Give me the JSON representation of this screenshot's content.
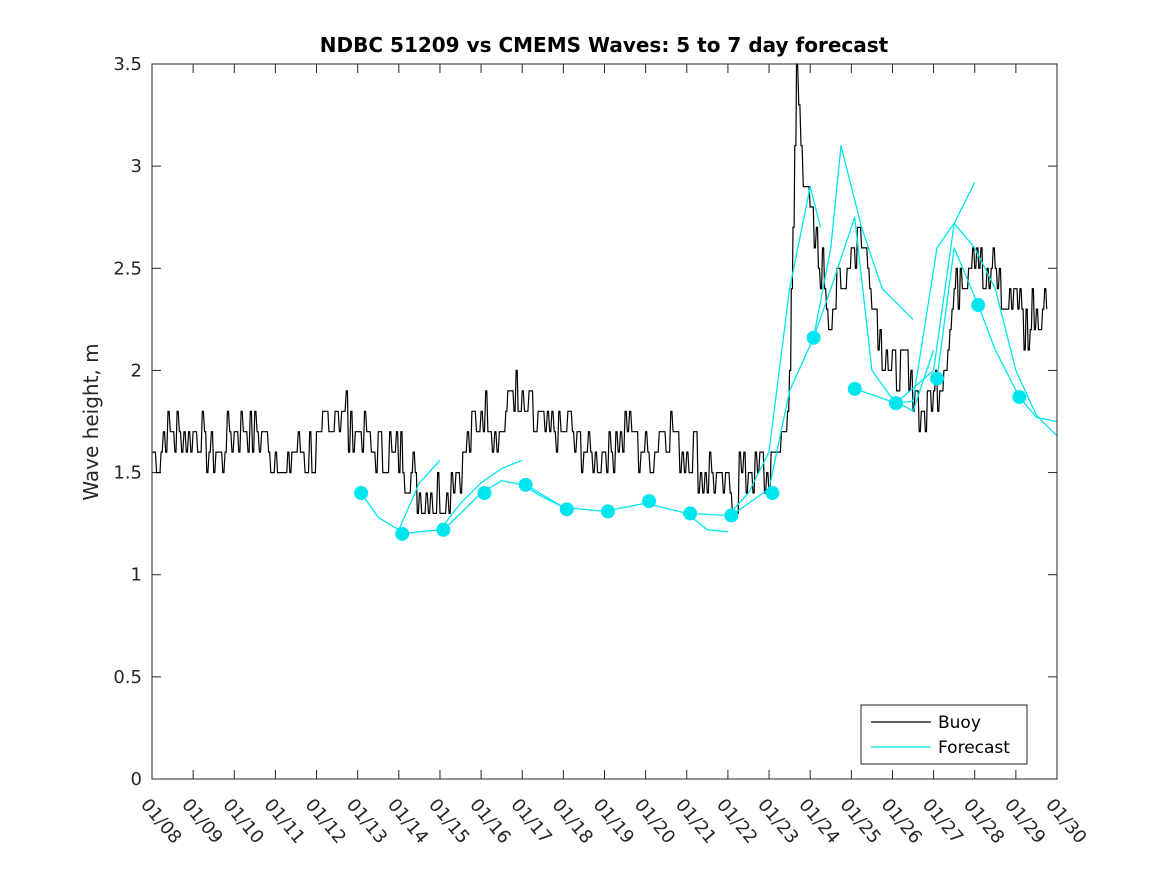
{
  "chart_data": {
    "type": "line",
    "title": "NDBC 51209 vs CMEMS Waves: 5 to 7 day forecast",
    "xlabel": "",
    "ylabel": "Wave height, m",
    "xlim": [
      "01/08",
      "01/30"
    ],
    "ylim": [
      0,
      3.5
    ],
    "x_tick_labels": [
      "01/08",
      "01/09",
      "01/10",
      "01/11",
      "01/12",
      "01/13",
      "01/14",
      "01/15",
      "01/16",
      "01/17",
      "01/18",
      "01/19",
      "01/20",
      "01/21",
      "01/22",
      "01/23",
      "01/24",
      "01/25",
      "01/26",
      "01/27",
      "01/28",
      "01/29",
      "01/30"
    ],
    "y_ticks": [
      0,
      0.5,
      1,
      1.5,
      2,
      2.5,
      3,
      3.5
    ],
    "y_tick_labels": [
      "0",
      "0.5",
      "1",
      "1.5",
      "2",
      "2.5",
      "3",
      "3.5"
    ],
    "legend": {
      "placement": "bottom-right",
      "entries": [
        "Buoy",
        "Forecast"
      ]
    },
    "grid": false,
    "colors": {
      "buoy": "#000000",
      "forecast": "#00e5ee"
    },
    "series": [
      {
        "name": "Buoy",
        "x": [
          "01/08 00:00",
          "01/08 12:00",
          "01/09 00:00",
          "01/09 12:00",
          "01/10 00:00",
          "01/10 12:00",
          "01/11 00:00",
          "01/11 06:00",
          "01/11 12:00",
          "01/12 00:00",
          "01/12 06:00",
          "01/12 12:00",
          "01/13 00:00",
          "01/13 12:00",
          "01/14 00:00",
          "01/14 06:00",
          "01/14 12:00",
          "01/15 00:00",
          "01/15 12:00",
          "01/15 20:00",
          "01/16 00:00",
          "01/16 12:00",
          "01/16 18:00",
          "01/17 00:00",
          "01/17 12:00",
          "01/18 00:00",
          "01/18 12:00",
          "01/19 00:00",
          "01/19 12:00",
          "01/20 00:00",
          "01/20 12:00",
          "01/21 00:00",
          "01/21 12:00",
          "01/22 00:00",
          "01/22 12:00",
          "01/23 00:00",
          "01/23 06:00",
          "01/23 12:00",
          "01/23 14:00",
          "01/23 16:00",
          "01/23 20:00",
          "01/24 00:00",
          "01/24 06:00",
          "01/24 12:00",
          "01/24 18:00",
          "01/25 00:00",
          "01/25 06:00",
          "01/25 12:00",
          "01/25 18:00",
          "01/26 00:00",
          "01/26 06:00",
          "01/26 12:00",
          "01/26 18:00",
          "01/27 00:00",
          "01/27 06:00",
          "01/27 12:00",
          "01/27 18:00",
          "01/28 00:00",
          "01/28 06:00",
          "01/28 12:00",
          "01/28 18:00",
          "01/29 00:00",
          "01/29 06:00",
          "01/29 12:00",
          "01/29 18:00"
        ],
        "y": [
          1.6,
          1.7,
          1.7,
          1.6,
          1.7,
          1.7,
          1.6,
          1.5,
          1.6,
          1.6,
          1.7,
          1.8,
          1.7,
          1.6,
          1.6,
          1.5,
          1.4,
          1.4,
          1.5,
          1.7,
          1.8,
          1.7,
          1.9,
          1.8,
          1.7,
          1.7,
          1.6,
          1.6,
          1.7,
          1.6,
          1.7,
          1.6,
          1.5,
          1.4,
          1.5,
          1.5,
          1.6,
          1.9,
          2.7,
          3.5,
          3.0,
          2.7,
          2.5,
          2.3,
          2.4,
          2.6,
          2.7,
          2.4,
          2.1,
          2.0,
          2.0,
          1.9,
          1.8,
          1.9,
          2.0,
          2.4,
          2.5,
          2.6,
          2.4,
          2.5,
          2.3,
          2.4,
          2.2,
          2.3,
          2.3
        ]
      },
      {
        "name": "Forecast",
        "x": [
          "01/13 02:00",
          "01/13 12:00",
          "01/14 02:00",
          "01/14 12:00",
          "01/15 02:00",
          "01/15 12:00",
          "01/16 02:00",
          "01/16 12:00",
          "01/17 02:00",
          "01/17 12:00",
          "01/18 02:00",
          "01/18 12:00",
          "01/19 02:00",
          "01/19 12:00",
          "01/20 02:00",
          "01/20 12:00",
          "01/21 02:00",
          "01/21 12:00",
          "01/22 02:00",
          "01/22 12:00",
          "01/23 02:00",
          "01/23 12:00",
          "01/24 02:00",
          "01/24 12:00",
          "01/25 02:00",
          "01/25 12:00",
          "01/26 02:00",
          "01/26 12:00",
          "01/27 02:00",
          "01/27 12:00",
          "01/28 02:00",
          "01/28 12:00",
          "01/29 02:00",
          "01/29 12:00",
          "01/30 00:00"
        ],
        "y": [
          1.4,
          1.25,
          1.2,
          1.21,
          1.22,
          1.3,
          1.4,
          1.45,
          1.44,
          1.38,
          1.32,
          1.32,
          1.31,
          1.34,
          1.36,
          1.34,
          1.3,
          1.27,
          1.29,
          1.35,
          1.4,
          1.75,
          2.16,
          2.4,
          1.91,
          1.88,
          1.84,
          1.95,
          1.96,
          2.5,
          2.32,
          2.05,
          1.87,
          1.78,
          1.68
        ]
      }
    ],
    "forecast_markers": {
      "x": [
        "01/13 02:00",
        "01/14 02:00",
        "01/15 02:00",
        "01/16 02:00",
        "01/17 02:00",
        "01/18 02:00",
        "01/19 02:00",
        "01/20 02:00",
        "01/21 02:00",
        "01/22 02:00",
        "01/23 02:00",
        "01/24 02:00",
        "01/25 02:00",
        "01/26 02:00",
        "01/27 02:00",
        "01/28 02:00",
        "01/29 02:00"
      ],
      "y": [
        1.4,
        1.2,
        1.22,
        1.4,
        1.44,
        1.32,
        1.31,
        1.36,
        1.3,
        1.29,
        1.4,
        2.16,
        1.91,
        1.84,
        1.96,
        2.32,
        1.87
      ]
    },
    "forecast_segments": [
      {
        "x": [
          "01/13 02:00",
          "01/13 12:00",
          "01/14 00:00",
          "01/14 12:00",
          "01/15 00:00"
        ],
        "y": [
          1.4,
          1.28,
          1.22,
          1.45,
          1.56
        ]
      },
      {
        "x": [
          "01/14 02:00",
          "01/14 12:00",
          "01/15 00:00",
          "01/15 12:00",
          "01/16 00:00",
          "01/16 12:00",
          "01/17 00:00"
        ],
        "y": [
          1.2,
          1.21,
          1.22,
          1.35,
          1.45,
          1.52,
          1.56
        ]
      },
      {
        "x": [
          "01/15 02:00",
          "01/15 12:00",
          "01/16 00:00",
          "01/16 12:00",
          "01/17 00:00",
          "01/17 12:00",
          "01/18 00:00"
        ],
        "y": [
          1.22,
          1.3,
          1.4,
          1.46,
          1.44,
          1.38,
          1.33
        ]
      },
      {
        "x": [
          "01/17 02:00",
          "01/18 00:00",
          "01/19 00:00",
          "01/20 00:00",
          "01/21 00:00",
          "01/21 12:00",
          "01/22 00:00"
        ],
        "y": [
          1.44,
          1.33,
          1.31,
          1.35,
          1.3,
          1.22,
          1.21
        ]
      },
      {
        "x": [
          "01/21 02:00",
          "01/22 00:00",
          "01/22 12:00",
          "01/23 00:00",
          "01/23 12:00",
          "01/24 00:00",
          "01/24 06:00"
        ],
        "y": [
          1.3,
          1.29,
          1.4,
          1.6,
          2.4,
          2.9,
          2.7
        ]
      },
      {
        "x": [
          "01/22 02:00",
          "01/23 00:00",
          "01/23 12:00",
          "01/24 02:00",
          "01/24 12:00",
          "01/24 18:00",
          "01/25 06:00",
          "01/25 18:00",
          "01/26 12:00"
        ],
        "y": [
          1.29,
          1.42,
          1.9,
          2.16,
          2.6,
          3.1,
          2.7,
          2.4,
          2.25
        ]
      },
      {
        "x": [
          "01/24 02:00",
          "01/24 12:00",
          "01/25 02:00",
          "01/25 12:00",
          "01/26 00:00",
          "01/26 12:00",
          "01/27 00:00"
        ],
        "y": [
          2.16,
          2.4,
          2.75,
          2.0,
          1.86,
          1.8,
          2.1
        ]
      },
      {
        "x": [
          "01/25 02:00",
          "01/26 02:00",
          "01/26 12:00",
          "01/27 02:00",
          "01/27 12:00",
          "01/28 00:00"
        ],
        "y": [
          1.91,
          1.84,
          1.85,
          2.6,
          2.72,
          2.92
        ]
      },
      {
        "x": [
          "01/27 02:00",
          "01/27 12:00",
          "01/28 02:00",
          "01/28 12:00",
          "01/29 02:00",
          "01/29 12:00",
          "01/30 00:00"
        ],
        "y": [
          1.96,
          2.6,
          2.32,
          2.1,
          1.87,
          1.77,
          1.75
        ]
      },
      {
        "x": [
          "01/26 02:00",
          "01/27 00:00",
          "01/27 12:00",
          "01/28 00:00",
          "01/28 12:00",
          "01/29 00:00",
          "01/29 12:00",
          "01/30 00:00"
        ],
        "y": [
          1.84,
          2.0,
          2.72,
          2.6,
          2.4,
          2.0,
          1.78,
          1.68
        ]
      }
    ]
  }
}
